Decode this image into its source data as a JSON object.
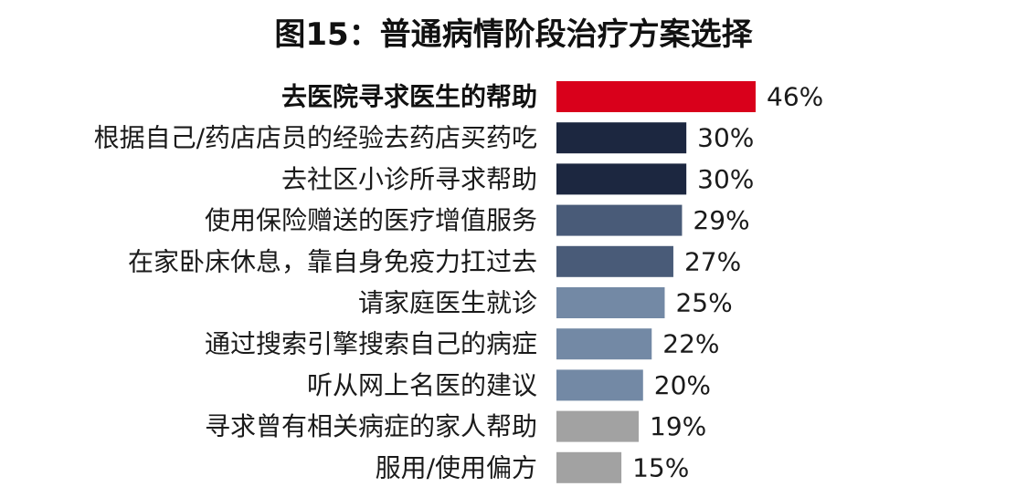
{
  "chart_data": {
    "type": "bar",
    "orientation": "horizontal",
    "title": "图15：普通病情阶段治疗方案选择",
    "categories": [
      "去医院寻求医生的帮助",
      "根据自己/药店店员的经验去药店买药吃",
      "去社区小诊所寻求帮助",
      "使用保险赠送的医疗增值服务",
      "在家卧床休息，靠自身免疫力扛过去",
      "请家庭医生就诊",
      "通过搜索引擎搜索自己的病症",
      "听从网上名医的建议",
      "寻求曾有相关病症的家人帮助",
      "服用/使用偏方"
    ],
    "values": [
      46,
      30,
      30,
      29,
      27,
      25,
      22,
      20,
      19,
      15
    ],
    "value_labels": [
      "46%",
      "30%",
      "30%",
      "29%",
      "27%",
      "25%",
      "22%",
      "20%",
      "19%",
      "15%"
    ],
    "colors": [
      "#d9001b",
      "#1c2740",
      "#1c2740",
      "#495b78",
      "#495b78",
      "#7389a5",
      "#7389a5",
      "#7389a5",
      "#a2a2a2",
      "#a2a2a2"
    ],
    "highlight_index": 0,
    "grid": false,
    "legend": "none"
  }
}
